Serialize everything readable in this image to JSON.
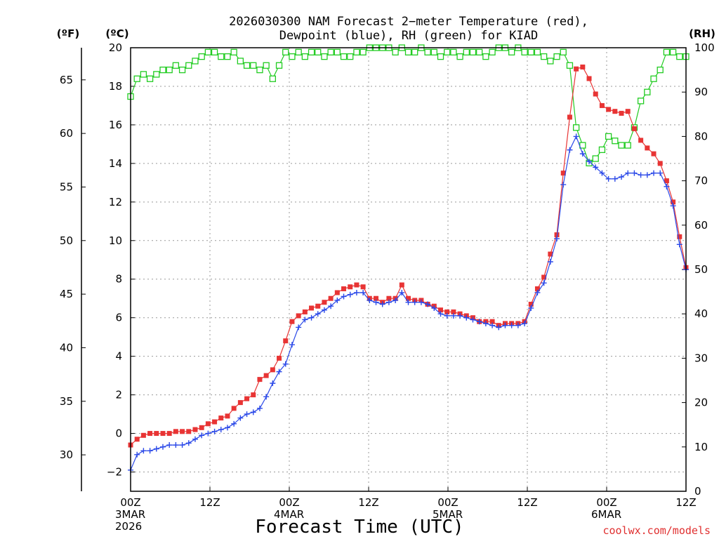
{
  "chart_data": {
    "type": "line",
    "title": "2026030300 NAM Forecast 2−meter Temperature (red),",
    "subtitle": "Dewpoint (blue), RH (green) for KIAD",
    "xlabel": "Forecast Time (UTC)",
    "credit": "coolwx.com/models",
    "x_range_hours": [
      0,
      84
    ],
    "x_ticks": [
      {
        "hour": 0,
        "labels": [
          "00Z",
          "3MAR",
          "2026"
        ]
      },
      {
        "hour": 12,
        "labels": [
          "12Z"
        ]
      },
      {
        "hour": 24,
        "labels": [
          "00Z",
          "4MAR"
        ]
      },
      {
        "hour": 36,
        "labels": [
          "12Z"
        ]
      },
      {
        "hour": 48,
        "labels": [
          "00Z",
          "5MAR"
        ]
      },
      {
        "hour": 60,
        "labels": [
          "12Z"
        ]
      },
      {
        "hour": 72,
        "labels": [
          "00Z",
          "6MAR"
        ]
      },
      {
        "hour": 84,
        "labels": [
          "12Z"
        ]
      }
    ],
    "axes": {
      "celsius": {
        "unit_label": "(ºC)",
        "range": [
          -3,
          20
        ],
        "ticks": [
          -2,
          0,
          2,
          4,
          6,
          8,
          10,
          12,
          14,
          16,
          18,
          20
        ]
      },
      "fahrenheit": {
        "unit_label": "(ºF)",
        "ticks": [
          30,
          35,
          40,
          45,
          50,
          55,
          60,
          65
        ]
      },
      "rh": {
        "unit_label": "(RH)",
        "range": [
          0,
          100
        ],
        "ticks": [
          0,
          10,
          20,
          30,
          40,
          50,
          60,
          70,
          80,
          90,
          100
        ]
      }
    },
    "grid": true,
    "series": [
      {
        "name": "Temperature",
        "unit": "C",
        "color": "#e83434",
        "marker": "filled-square",
        "values": [
          -0.6,
          -0.3,
          -0.1,
          0.0,
          0.0,
          0.0,
          0.0,
          0.1,
          0.1,
          0.1,
          0.2,
          0.3,
          0.5,
          0.6,
          0.8,
          0.9,
          1.3,
          1.6,
          1.8,
          2.0,
          2.8,
          3.0,
          3.3,
          3.9,
          4.8,
          5.8,
          6.1,
          6.3,
          6.5,
          6.6,
          6.8,
          7.0,
          7.3,
          7.5,
          7.6,
          7.7,
          7.6,
          7.0,
          7.0,
          6.8,
          7.0,
          7.0,
          7.7,
          7.0,
          6.9,
          6.9,
          6.7,
          6.6,
          6.4,
          6.3,
          6.3,
          6.2,
          6.1,
          6.0,
          5.8,
          5.8,
          5.8,
          5.6,
          5.7,
          5.7,
          5.7,
          5.8,
          6.7,
          7.5,
          8.1,
          9.3,
          10.3,
          13.5,
          16.4,
          18.9,
          19.0,
          18.4,
          17.6,
          17.0,
          16.8,
          16.7,
          16.6,
          16.7,
          15.8,
          15.2,
          14.8,
          14.5,
          14.0,
          13.1,
          12.0,
          10.2,
          8.6
        ]
      },
      {
        "name": "Dewpoint",
        "unit": "C",
        "color": "#2a48e8",
        "marker": "plus",
        "values": [
          -1.9,
          -1.1,
          -0.9,
          -0.9,
          -0.8,
          -0.7,
          -0.6,
          -0.6,
          -0.6,
          -0.5,
          -0.3,
          -0.1,
          0.0,
          0.1,
          0.2,
          0.3,
          0.5,
          0.8,
          1.0,
          1.1,
          1.3,
          1.9,
          2.6,
          3.2,
          3.6,
          4.6,
          5.5,
          5.9,
          6.0,
          6.2,
          6.4,
          6.6,
          6.9,
          7.1,
          7.2,
          7.3,
          7.3,
          6.9,
          6.8,
          6.7,
          6.8,
          6.9,
          7.3,
          6.8,
          6.8,
          6.8,
          6.7,
          6.5,
          6.2,
          6.1,
          6.1,
          6.1,
          6.0,
          5.9,
          5.8,
          5.7,
          5.6,
          5.5,
          5.6,
          5.6,
          5.6,
          5.7,
          6.5,
          7.3,
          7.8,
          8.9,
          10.1,
          12.9,
          14.7,
          15.4,
          14.5,
          14.1,
          13.8,
          13.5,
          13.2,
          13.2,
          13.3,
          13.5,
          13.5,
          13.4,
          13.4,
          13.5,
          13.5,
          12.8,
          11.8,
          9.8,
          8.5
        ]
      },
      {
        "name": "RH",
        "unit": "%",
        "color": "#22cc22",
        "marker": "open-square",
        "values": [
          89,
          93,
          94,
          93,
          94,
          95,
          95,
          96,
          95,
          96,
          97,
          98,
          99,
          99,
          98,
          98,
          99,
          97,
          96,
          96,
          95,
          96,
          93,
          96,
          99,
          98,
          99,
          98,
          99,
          99,
          98,
          99,
          99,
          98,
          98,
          99,
          99,
          100,
          100,
          100,
          100,
          99,
          100,
          99,
          99,
          100,
          99,
          99,
          98,
          99,
          99,
          98,
          99,
          99,
          99,
          98,
          99,
          100,
          100,
          99,
          100,
          99,
          99,
          99,
          98,
          97,
          98,
          99,
          96,
          82,
          78,
          74,
          75,
          77,
          80,
          79,
          78,
          78,
          82,
          88,
          90,
          93,
          95,
          99,
          99,
          98,
          98
        ]
      }
    ]
  }
}
